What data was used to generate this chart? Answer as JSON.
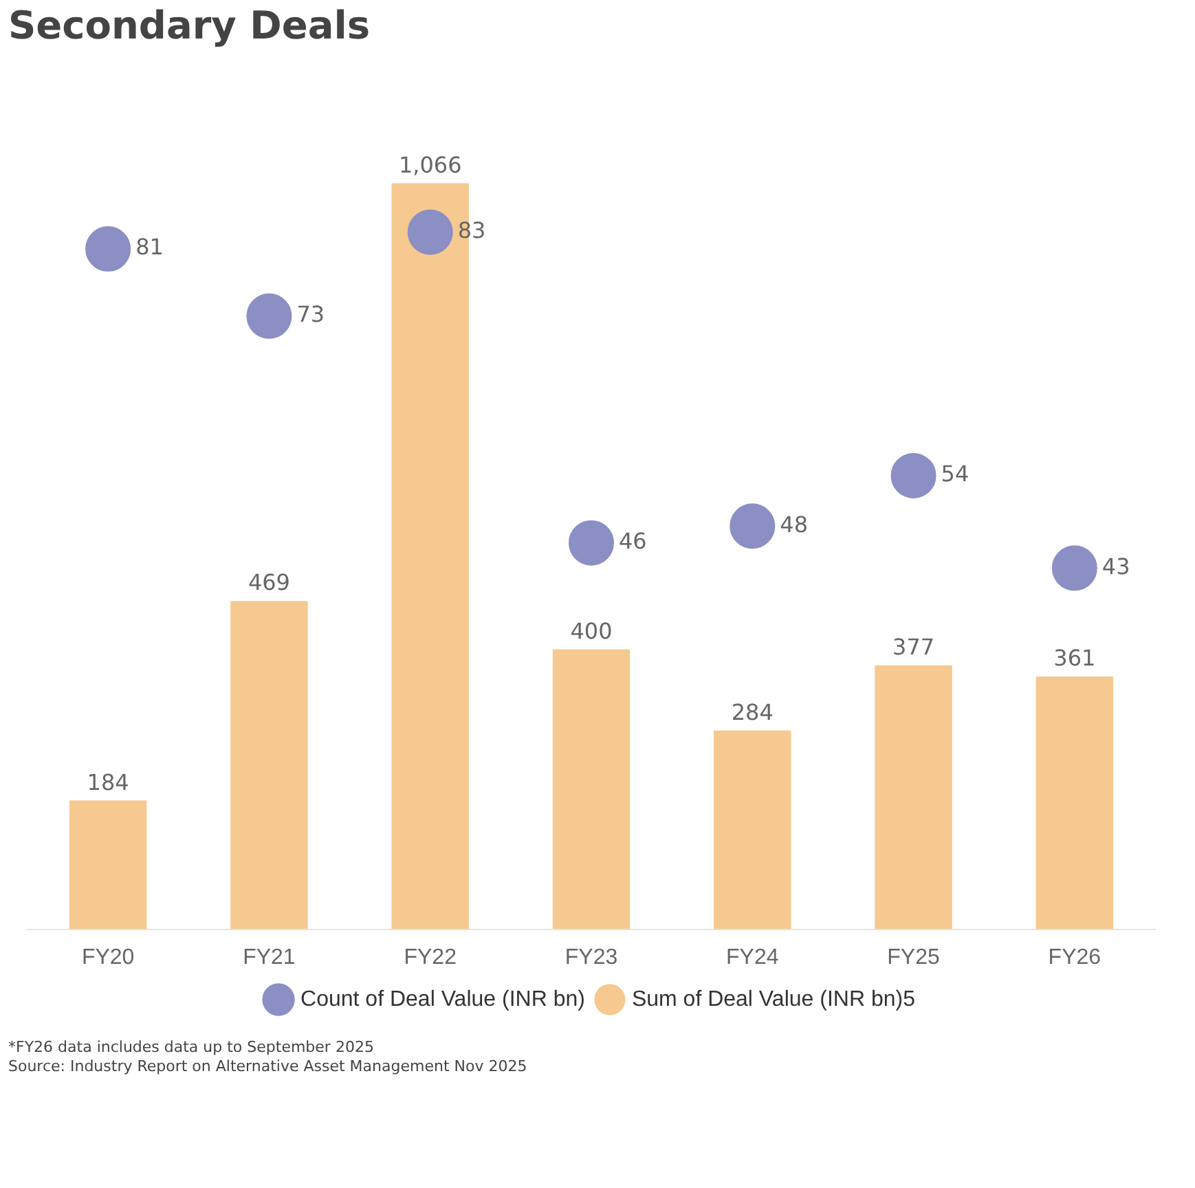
{
  "chart_data": {
    "type": "bar",
    "title": "Secondary Deals",
    "categories": [
      "FY20",
      "FY21",
      "FY22",
      "FY23",
      "FY24",
      "FY25",
      "FY26"
    ],
    "series": [
      {
        "name": "Sum of Deal Value (INR bn)5",
        "color": "#f5c98f",
        "values": [
          184,
          469,
          1066,
          400,
          284,
          377,
          361
        ],
        "value_labels": [
          "184",
          "469",
          "1,066",
          "400",
          "284",
          "377",
          "361"
        ]
      },
      {
        "name": "Count of Deal Value (INR bn)",
        "type": "scatter",
        "axis": "y2",
        "marker": "circle",
        "color": "#8b8fc4",
        "values": [
          81,
          73,
          83,
          46,
          48,
          54,
          43
        ],
        "value_labels": [
          "81",
          "73",
          "83",
          "46",
          "48",
          "54",
          "43"
        ]
      }
    ],
    "data_labels": true,
    "grid": false,
    "legend": "bottom",
    "annotations": [
      "*FY26 data includes data up to September 2025",
      "Source: Industry Report on Alternative Asset Management Nov 2025"
    ]
  }
}
